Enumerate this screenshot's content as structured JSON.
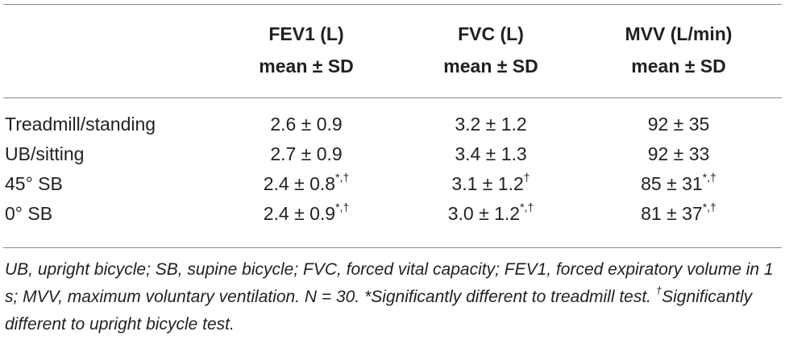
{
  "table": {
    "columns": [
      {
        "line1": "",
        "line2": ""
      },
      {
        "line1": "FEV1 (L)",
        "line2": "mean ± SD"
      },
      {
        "line1": "FVC (L)",
        "line2": "mean ± SD"
      },
      {
        "line1": "MVV (L/min)",
        "line2": "mean ± SD"
      }
    ],
    "rows": [
      {
        "label": "Treadmill/standing",
        "fev1": {
          "value": "2.6 ± 0.9",
          "mark": ""
        },
        "fvc": {
          "value": "3.2 ± 1.2",
          "mark": ""
        },
        "mvv": {
          "value": "92 ± 35",
          "mark": ""
        }
      },
      {
        "label": "UB/sitting",
        "fev1": {
          "value": "2.7 ± 0.9",
          "mark": ""
        },
        "fvc": {
          "value": "3.4 ± 1.3",
          "mark": ""
        },
        "mvv": {
          "value": "92 ± 33",
          "mark": ""
        }
      },
      {
        "label": "45° SB",
        "fev1": {
          "value": "2.4 ± 0.8",
          "mark": "*,†"
        },
        "fvc": {
          "value": "3.1 ± 1.2",
          "mark": "†"
        },
        "mvv": {
          "value": "85 ± 31",
          "mark": "*,†"
        }
      },
      {
        "label": "0° SB",
        "fev1": {
          "value": "2.4 ± 0.9",
          "mark": "*,†"
        },
        "fvc": {
          "value": "3.0 ± 1.2",
          "mark": "*,†"
        },
        "mvv": {
          "value": "81 ± 37",
          "mark": "*,†"
        }
      }
    ]
  },
  "footnote": {
    "text_main": "UB, upright bicycle; SB, supine bicycle; FVC, forced vital capacity; FEV1, forced expiratory volume in 1 s; MVV, maximum voluntary ventilation. N = 30. *Significantly different to treadmill test. ",
    "dagger": "†",
    "text_dagger": "Significantly different to upright bicycle test."
  }
}
